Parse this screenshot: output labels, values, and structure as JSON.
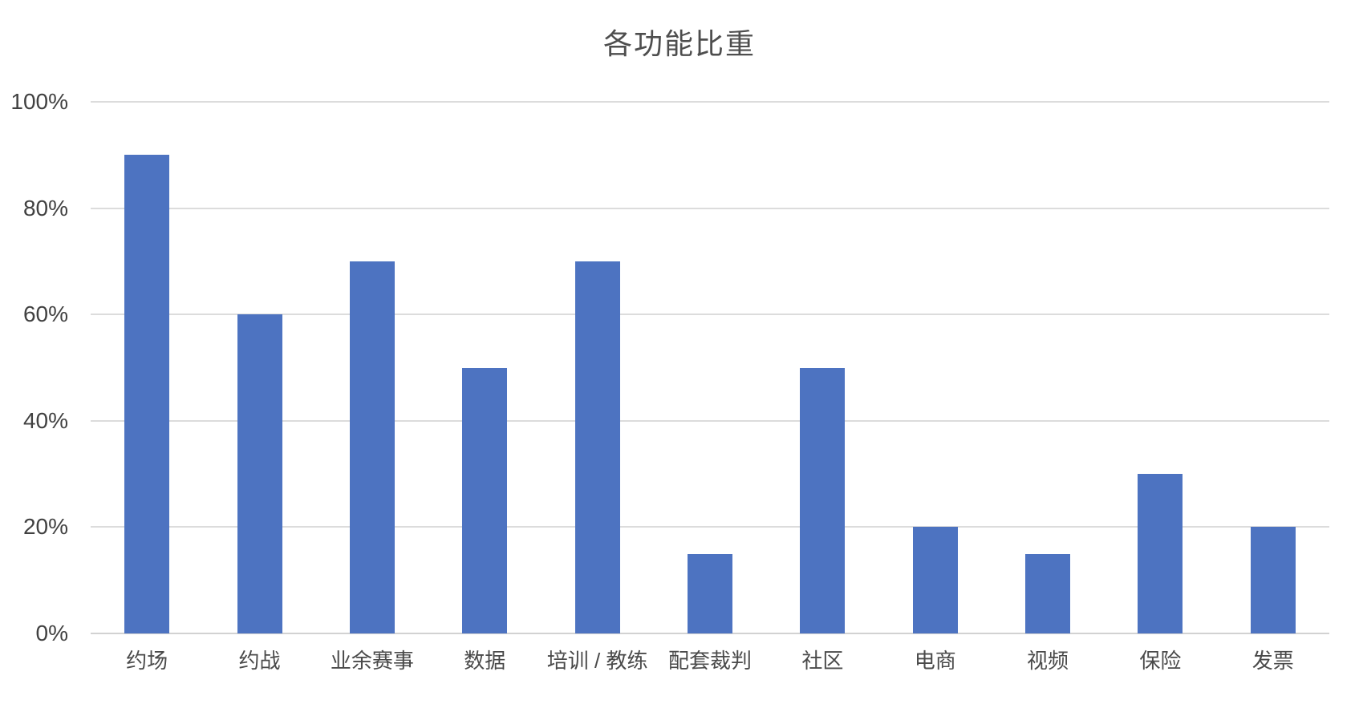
{
  "title": "各功能比重",
  "colors": {
    "background": "#FFFFFF",
    "bar": "#4D73C1",
    "gridline": "#DCDCDC",
    "axis_line": "#D2D2D2",
    "title_text": "#4E4E4E",
    "tick_text": "#414141",
    "category_text": "#4A4A4A"
  },
  "chart_data": {
    "type": "bar",
    "title": "各功能比重",
    "categories": [
      "约场",
      "约战",
      "业余赛事",
      "数据",
      "培训 / 教练",
      "配套裁判",
      "社区",
      "电商",
      "视频",
      "保险",
      "发票"
    ],
    "values": [
      90,
      60,
      70,
      50,
      70,
      15,
      50,
      20,
      15,
      30,
      20
    ],
    "unit": "%",
    "xlabel": "",
    "ylabel": "",
    "ylim": [
      0,
      100
    ],
    "y_ticks": [
      "100%",
      "80%",
      "60%",
      "40%",
      "20%",
      "0%"
    ],
    "y_tick_values": [
      100,
      80,
      60,
      40,
      20,
      0
    ],
    "grid": "horizontal",
    "legend": "none"
  }
}
